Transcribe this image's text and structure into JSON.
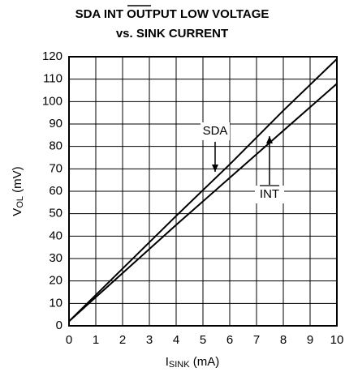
{
  "chart_data": {
    "type": "line",
    "title": "SDA INT OUTPUT LOW VOLTAGE",
    "subtitle": "vs. SINK CURRENT",
    "xlabel": [
      "I",
      "SINK",
      " (mA)"
    ],
    "ylabel": [
      "V",
      "OL",
      " (mV)"
    ],
    "x": [
      0,
      2,
      4,
      6,
      8,
      10
    ],
    "series": [
      {
        "name": "SDA",
        "color": "#000000",
        "values": [
          2,
          25.5,
          49,
          72,
          96,
          119
        ]
      },
      {
        "name": "INT",
        "color": "#000000",
        "values": [
          2,
          23.5,
          45,
          66,
          87,
          108
        ]
      }
    ],
    "xlim": [
      0,
      10
    ],
    "xticks": [
      0,
      1,
      2,
      3,
      4,
      5,
      6,
      7,
      8,
      9,
      10
    ],
    "ylim": [
      0,
      120
    ],
    "yticks": [
      0,
      10,
      20,
      30,
      40,
      50,
      60,
      70,
      80,
      90,
      100,
      110,
      120
    ],
    "grid": true
  }
}
